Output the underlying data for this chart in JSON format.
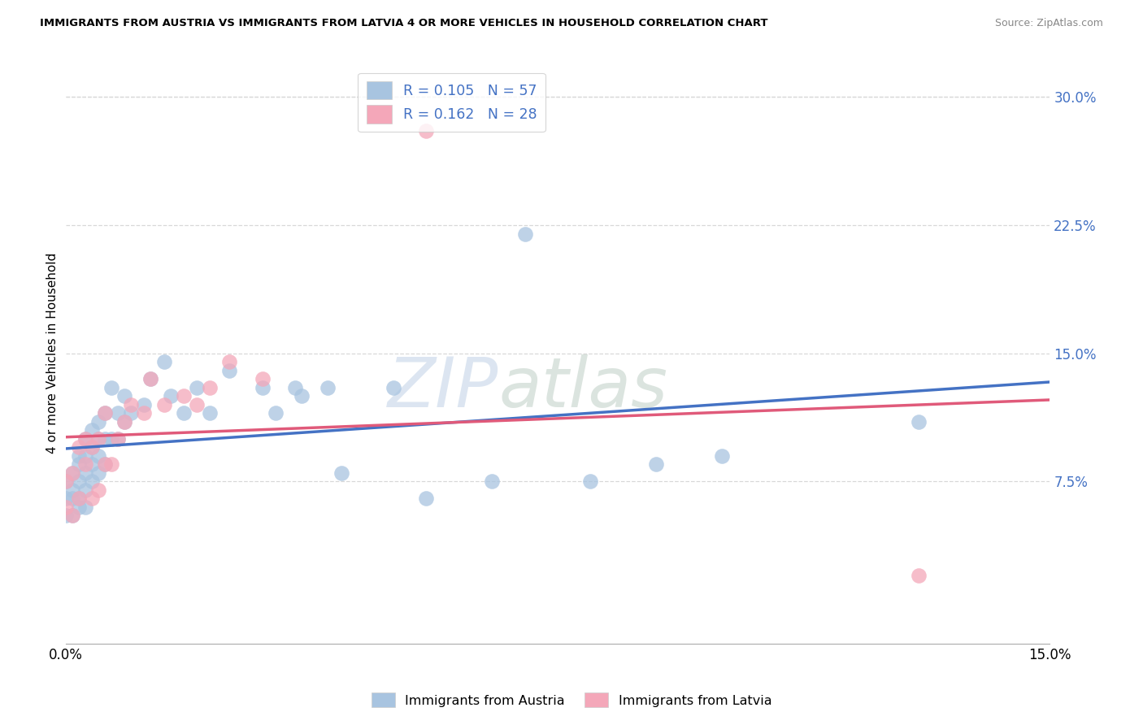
{
  "title": "IMMIGRANTS FROM AUSTRIA VS IMMIGRANTS FROM LATVIA 4 OR MORE VEHICLES IN HOUSEHOLD CORRELATION CHART",
  "source": "Source: ZipAtlas.com",
  "ylabel": "4 or more Vehicles in Household",
  "xlim": [
    0.0,
    0.15
  ],
  "ylim": [
    -0.02,
    0.32
  ],
  "xticks": [
    0.0,
    0.05,
    0.1,
    0.15
  ],
  "xtick_labels": [
    "0.0%",
    "",
    "",
    "15.0%"
  ],
  "yticks_right": [
    0.075,
    0.15,
    0.225,
    0.3
  ],
  "ytick_right_labels": [
    "7.5%",
    "15.0%",
    "22.5%",
    "30.0%"
  ],
  "legend_austria_R": "0.105",
  "legend_austria_N": "57",
  "legend_latvia_R": "0.162",
  "legend_latvia_N": "28",
  "austria_color": "#a8c4e0",
  "latvia_color": "#f4a7b9",
  "austria_line_color": "#4472c4",
  "latvia_line_color": "#e05a7a",
  "austria_scatter_x": [
    0.0,
    0.0,
    0.0,
    0.001,
    0.001,
    0.001,
    0.001,
    0.002,
    0.002,
    0.002,
    0.002,
    0.002,
    0.003,
    0.003,
    0.003,
    0.003,
    0.003,
    0.004,
    0.004,
    0.004,
    0.004,
    0.005,
    0.005,
    0.005,
    0.005,
    0.006,
    0.006,
    0.006,
    0.007,
    0.007,
    0.008,
    0.008,
    0.009,
    0.009,
    0.01,
    0.012,
    0.013,
    0.015,
    0.016,
    0.018,
    0.02,
    0.022,
    0.025,
    0.03,
    0.032,
    0.035,
    0.036,
    0.04,
    0.042,
    0.05,
    0.055,
    0.065,
    0.07,
    0.08,
    0.09,
    0.1,
    0.13
  ],
  "austria_scatter_y": [
    0.055,
    0.065,
    0.075,
    0.055,
    0.065,
    0.07,
    0.08,
    0.06,
    0.065,
    0.075,
    0.085,
    0.09,
    0.06,
    0.07,
    0.08,
    0.09,
    0.1,
    0.075,
    0.085,
    0.095,
    0.105,
    0.08,
    0.09,
    0.1,
    0.11,
    0.085,
    0.1,
    0.115,
    0.1,
    0.13,
    0.1,
    0.115,
    0.11,
    0.125,
    0.115,
    0.12,
    0.135,
    0.145,
    0.125,
    0.115,
    0.13,
    0.115,
    0.14,
    0.13,
    0.115,
    0.13,
    0.125,
    0.13,
    0.08,
    0.13,
    0.065,
    0.075,
    0.22,
    0.075,
    0.085,
    0.09,
    0.11
  ],
  "latvia_scatter_x": [
    0.0,
    0.0,
    0.001,
    0.001,
    0.002,
    0.002,
    0.003,
    0.003,
    0.004,
    0.004,
    0.005,
    0.005,
    0.006,
    0.006,
    0.007,
    0.008,
    0.009,
    0.01,
    0.012,
    0.013,
    0.015,
    0.018,
    0.02,
    0.022,
    0.025,
    0.03,
    0.055,
    0.13
  ],
  "latvia_scatter_y": [
    0.06,
    0.075,
    0.055,
    0.08,
    0.065,
    0.095,
    0.085,
    0.1,
    0.065,
    0.095,
    0.07,
    0.1,
    0.085,
    0.115,
    0.085,
    0.1,
    0.11,
    0.12,
    0.115,
    0.135,
    0.12,
    0.125,
    0.12,
    0.13,
    0.145,
    0.135,
    0.28,
    0.02
  ],
  "watermark_zip": "ZIP",
  "watermark_atlas": "atlas",
  "background_color": "#ffffff",
  "grid_color": "#d8d8d8"
}
